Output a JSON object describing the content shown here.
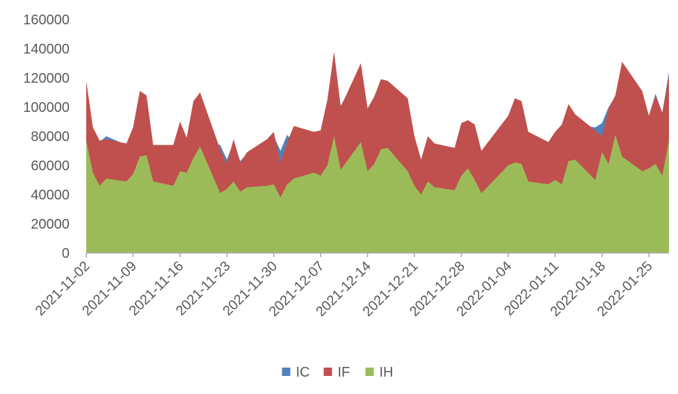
{
  "chart_data": {
    "type": "area",
    "stacked": false,
    "title": "",
    "xlabel": "",
    "ylabel": "",
    "ylim": [
      0,
      160000
    ],
    "yticks": [
      0,
      20000,
      40000,
      60000,
      80000,
      100000,
      120000,
      140000,
      160000
    ],
    "x_tick_labels": [
      "2021-11-02",
      "2021-11-09",
      "2021-11-16",
      "2021-11-23",
      "2021-11-30",
      "2021-12-07",
      "2021-12-14",
      "2021-12-21",
      "2021-12-28",
      "2022-01-04",
      "2022-01-11",
      "2022-01-18",
      "2022-01-25"
    ],
    "grid": false,
    "legend": {
      "placement": "bottom",
      "entries": [
        "IC",
        "IF",
        "IH"
      ]
    },
    "colors": {
      "IC": "#4f81bd",
      "IF": "#c0504d",
      "IH": "#9bbb59"
    },
    "x": [
      "2021-11-02",
      "2021-11-03",
      "2021-11-04",
      "2021-11-05",
      "2021-11-08",
      "2021-11-09",
      "2021-11-10",
      "2021-11-11",
      "2021-11-12",
      "2021-11-15",
      "2021-11-16",
      "2021-11-17",
      "2021-11-18",
      "2021-11-19",
      "2021-11-22",
      "2021-11-23",
      "2021-11-24",
      "2021-11-25",
      "2021-11-26",
      "2021-11-29",
      "2021-11-30",
      "2021-12-01",
      "2021-12-02",
      "2021-12-03",
      "2021-12-06",
      "2021-12-07",
      "2021-12-08",
      "2021-12-09",
      "2021-12-10",
      "2021-12-13",
      "2021-12-14",
      "2021-12-15",
      "2021-12-16",
      "2021-12-17",
      "2021-12-20",
      "2021-12-21",
      "2021-12-22",
      "2021-12-23",
      "2021-12-24",
      "2021-12-27",
      "2021-12-28",
      "2021-12-29",
      "2021-12-30",
      "2021-12-31",
      "2022-01-04",
      "2022-01-05",
      "2022-01-06",
      "2022-01-07",
      "2022-01-10",
      "2022-01-11",
      "2022-01-12",
      "2022-01-13",
      "2022-01-14",
      "2022-01-17",
      "2022-01-18",
      "2022-01-19",
      "2022-01-20",
      "2022-01-21",
      "2022-01-24",
      "2022-01-25",
      "2022-01-26",
      "2022-01-27",
      "2022-01-28"
    ],
    "series": [
      {
        "name": "IC",
        "values": [
          79000,
          86000,
          76000,
          80000,
          74000,
          75000,
          79000,
          76000,
          73000,
          74000,
          81000,
          79000,
          80000,
          78000,
          74000,
          64000,
          76000,
          63000,
          68000,
          76000,
          80000,
          70000,
          81000,
          75000,
          73000,
          77000,
          97000,
          118000,
          101000,
          125000,
          99000,
          107000,
          119000,
          118000,
          105000,
          72000,
          63000,
          76000,
          73000,
          70000,
          84000,
          88000,
          87000,
          67000,
          92000,
          104000,
          101000,
          81000,
          76000,
          80000,
          81000,
          95000,
          88000,
          86000,
          89000,
          100000,
          107000,
          126000,
          107000,
          94000,
          109000,
          96000,
          124000
        ]
      },
      {
        "name": "IF",
        "values": [
          118000,
          86000,
          77000,
          78000,
          75000,
          86000,
          111000,
          108000,
          74000,
          74000,
          90000,
          79000,
          104000,
          110000,
          71000,
          61000,
          78000,
          62000,
          69000,
          78000,
          83000,
          62000,
          76000,
          87000,
          83000,
          84000,
          105000,
          138000,
          100000,
          130000,
          99000,
          107000,
          119000,
          118000,
          106000,
          80000,
          64000,
          80000,
          75000,
          72000,
          89000,
          91000,
          88000,
          70000,
          94000,
          106000,
          104000,
          83000,
          76000,
          83000,
          88000,
          102000,
          95000,
          84000,
          80000,
          99000,
          108000,
          131000,
          111000,
          94000,
          108000,
          96000,
          121000
        ]
      },
      {
        "name": "IH",
        "values": [
          77000,
          55000,
          46000,
          51000,
          49000,
          54000,
          66000,
          67000,
          49000,
          46000,
          56000,
          55000,
          65000,
          73000,
          41000,
          44000,
          49000,
          42000,
          45000,
          46000,
          47000,
          38000,
          47000,
          51000,
          55000,
          53000,
          60000,
          80000,
          57000,
          76000,
          56000,
          61000,
          71000,
          72000,
          56000,
          46000,
          40000,
          49000,
          45000,
          43000,
          53000,
          58000,
          50000,
          41000,
          60000,
          62000,
          61000,
          49000,
          47000,
          50000,
          47000,
          63000,
          64000,
          50000,
          69000,
          61000,
          81000,
          66000,
          56000,
          58000,
          61000,
          53000,
          77000
        ]
      }
    ]
  }
}
